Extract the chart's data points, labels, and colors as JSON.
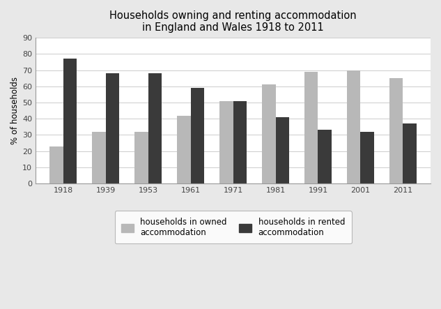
{
  "title": "Households owning and renting accommodation\nin England and Wales 1918 to 2011",
  "years": [
    "1918",
    "1939",
    "1953",
    "1961",
    "1971",
    "1981",
    "1991",
    "2001",
    "2011"
  ],
  "owned": [
    23,
    32,
    32,
    42,
    51,
    61,
    69,
    70,
    65
  ],
  "rented": [
    77,
    68,
    68,
    59,
    51,
    41,
    33,
    32,
    37
  ],
  "owned_color": "#b8b8b8",
  "rented_color": "#3a3a3a",
  "ylabel": "% of households",
  "ylim": [
    0,
    90
  ],
  "yticks": [
    0,
    10,
    20,
    30,
    40,
    50,
    60,
    70,
    80,
    90
  ],
  "legend_owned": "households in owned\naccommodation",
  "legend_rented": "households in rented\naccommodation",
  "bar_width": 0.32,
  "figure_bg": "#e8e8e8",
  "plot_bg": "#ffffff",
  "title_fontsize": 10.5,
  "axis_fontsize": 8.5,
  "tick_fontsize": 8
}
